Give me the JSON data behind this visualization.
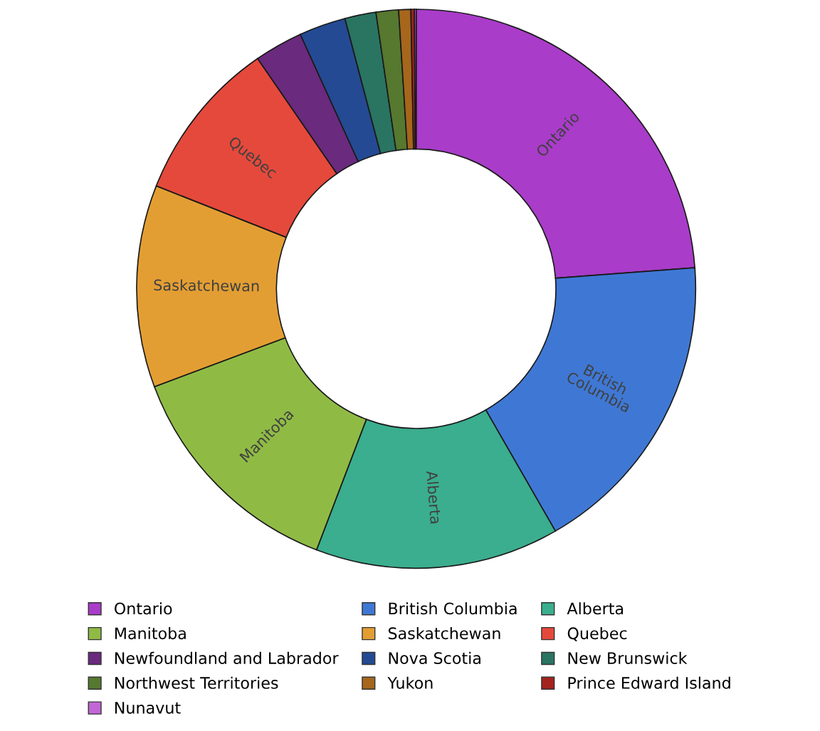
{
  "chart_data": {
    "type": "donut",
    "categories": [
      "Ontario",
      "British Columbia",
      "Alberta",
      "Manitoba",
      "Saskatchewan",
      "Quebec",
      "Newfoundland and Labrador",
      "Nova Scotia",
      "New Brunswick",
      "Northwest Territories",
      "Yukon",
      "Prince Edward Island",
      "Nunavut"
    ],
    "values": [
      23.8,
      17.9,
      14.1,
      13.5,
      11.7,
      9.4,
      2.8,
      2.7,
      1.8,
      1.3,
      0.7,
      0.2,
      0.1
    ],
    "colors": [
      "#a93cc9",
      "#3f78d4",
      "#3aae8e",
      "#8fbb45",
      "#e39e33",
      "#e5493b",
      "#6a2a7e",
      "#244a93",
      "#2a7462",
      "#56782f",
      "#a6661c",
      "#a4231e",
      "#c266d6"
    ],
    "legend": "bottom"
  }
}
